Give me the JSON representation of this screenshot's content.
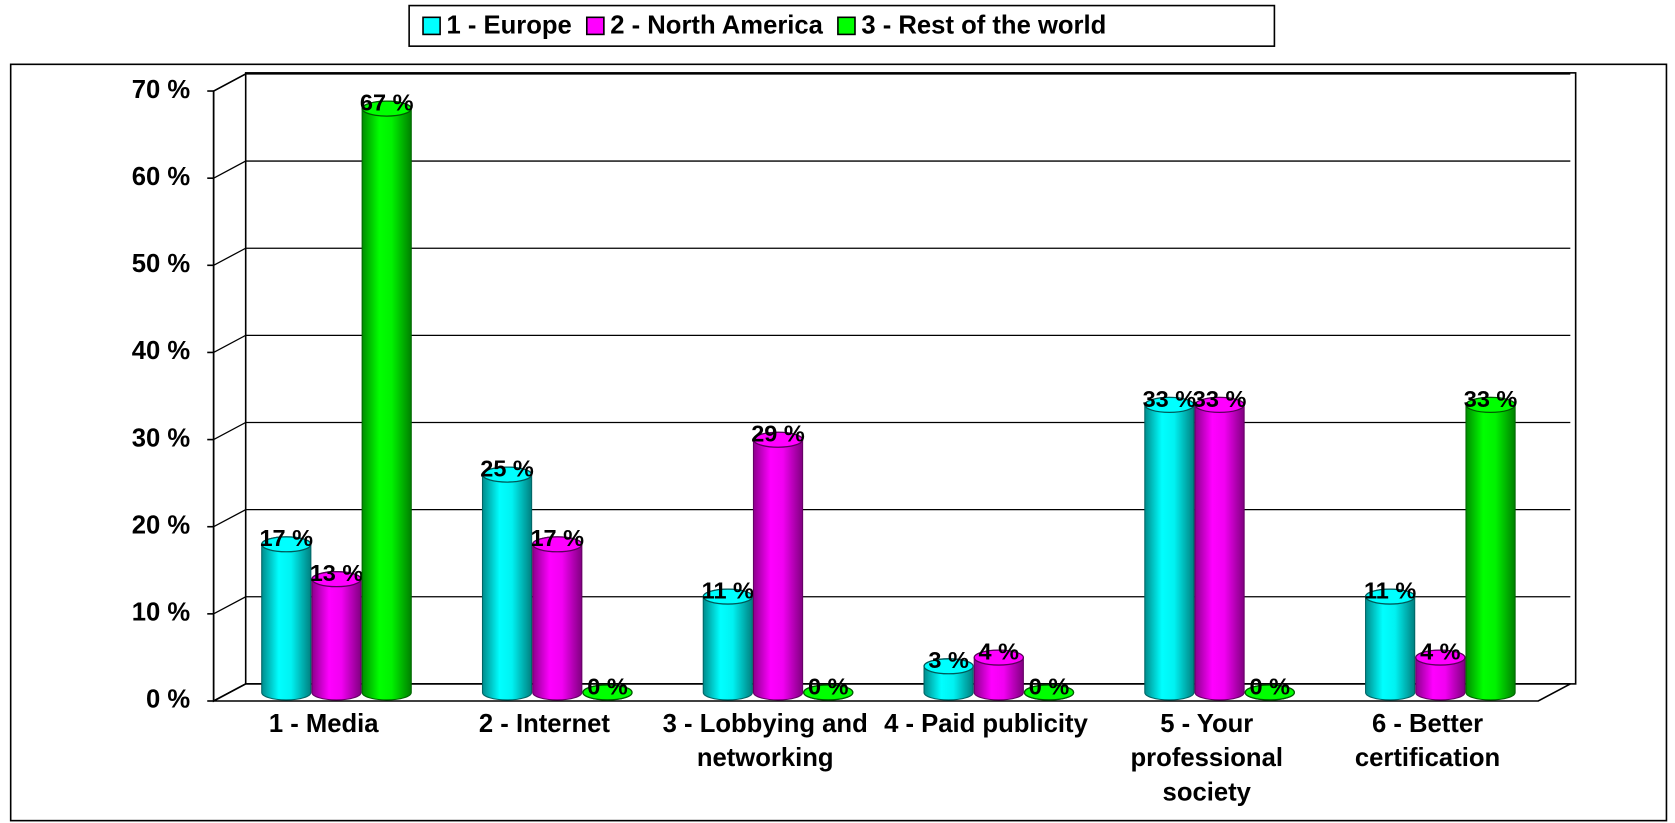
{
  "chart_data": {
    "type": "bar",
    "categories": [
      "1 - Media",
      "2 - Internet",
      "3 - Lobbying and networking",
      "4 - Paid publicity",
      "5 - Your professional society",
      "6 - Better certification"
    ],
    "series": [
      {
        "name": "1 - Europe",
        "color": "#00ffff",
        "values": [
          17,
          25,
          11,
          3,
          33,
          11
        ],
        "value_labels": [
          "17 %",
          "25 %",
          "11 %",
          "3 %",
          "33 %",
          "11 %"
        ]
      },
      {
        "name": "2 - North America",
        "color": "#ff00ff",
        "values": [
          13,
          17,
          29,
          4,
          33,
          4
        ],
        "value_labels": [
          "13 %",
          "17 %",
          "29 %",
          "4 %",
          "33 %",
          "4 %"
        ]
      },
      {
        "name": "3 - Rest of the world",
        "color": "#00ff00",
        "values": [
          67,
          0,
          0,
          0,
          0,
          33
        ],
        "value_labels": [
          "67 %",
          "0 %",
          "0 %",
          "0 %",
          "0 %",
          "33 %"
        ]
      }
    ],
    "ylim": [
      0,
      70
    ],
    "yticks": [
      {
        "value": 0,
        "label": "0 %"
      },
      {
        "value": 10,
        "label": "10 %"
      },
      {
        "value": 20,
        "label": "20 %"
      },
      {
        "value": 30,
        "label": "30 %"
      },
      {
        "value": 40,
        "label": "40 %"
      },
      {
        "value": 50,
        "label": "50 %"
      },
      {
        "value": 60,
        "label": "60 %"
      },
      {
        "value": 70,
        "label": "70 %"
      }
    ],
    "grid": true,
    "legend": "top"
  }
}
